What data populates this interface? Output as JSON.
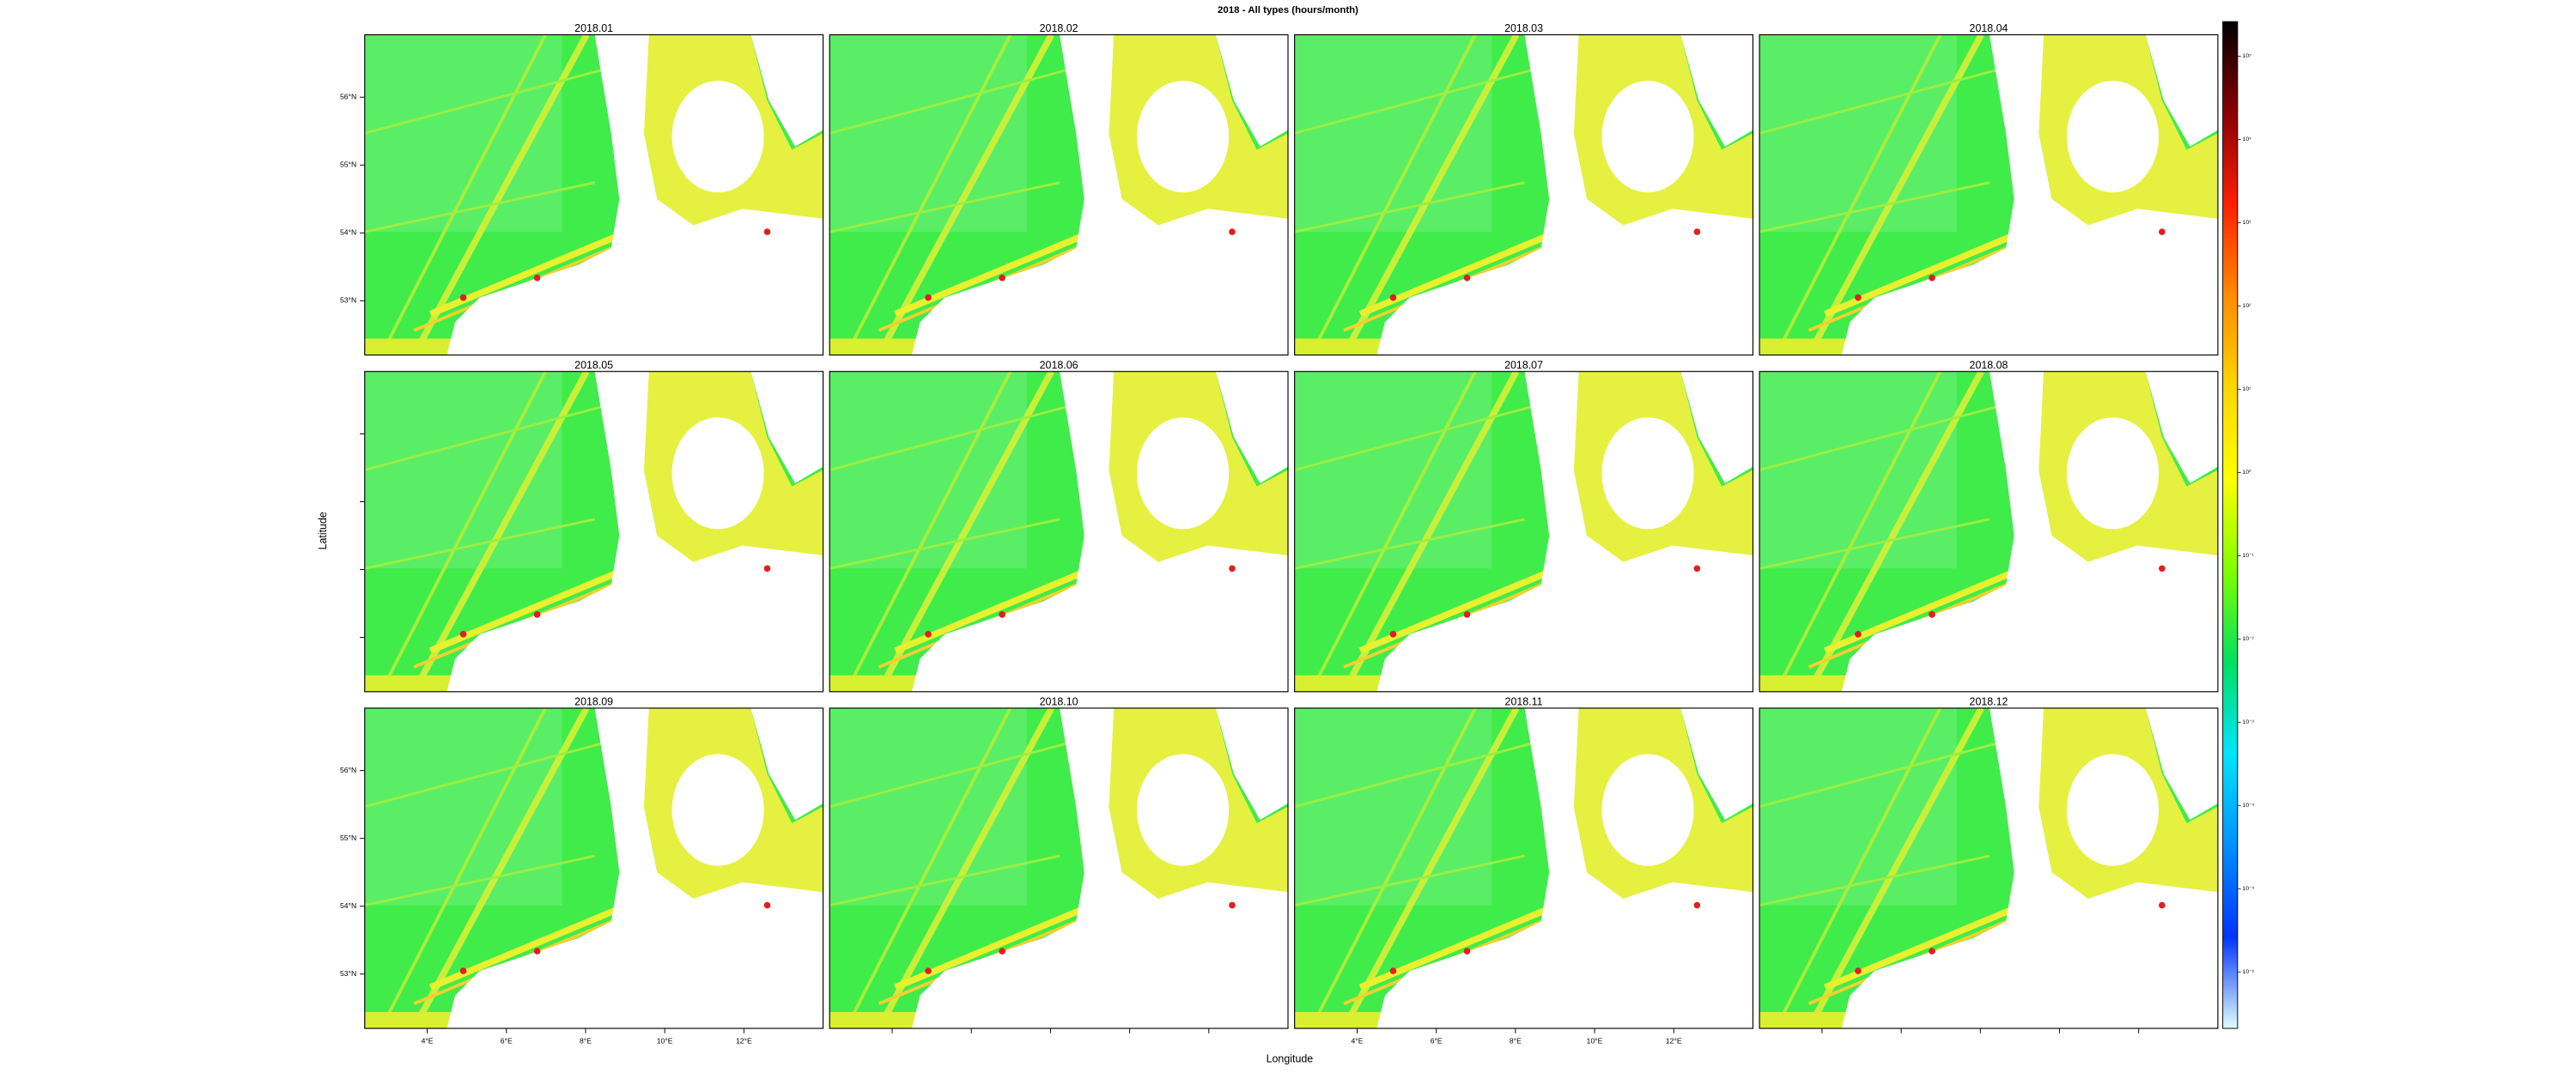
{
  "chart_data": {
    "type": "map-panels",
    "title": "2018 - All types (hours/month)",
    "xlabel": "Longitude",
    "ylabel": "Latitude",
    "panels": [
      "2018.01",
      "2018.02",
      "2018.03",
      "2018.04",
      "2018.05",
      "2018.06",
      "2018.07",
      "2018.08",
      "2018.09",
      "2018.10",
      "2018.11",
      "2018.12"
    ],
    "xlim": [
      2.42,
      14.0
    ],
    "ylim": [
      52.2,
      56.92
    ],
    "xticks": [
      {
        "value": 4,
        "label": "4°E"
      },
      {
        "value": 6,
        "label": "6°E"
      },
      {
        "value": 8,
        "label": "8°E"
      },
      {
        "value": 10,
        "label": "10°E"
      },
      {
        "value": 12,
        "label": "12°E"
      }
    ],
    "yticks": [
      {
        "value": 53,
        "label": "53°N"
      },
      {
        "value": 54,
        "label": "54°N"
      },
      {
        "value": 55,
        "label": "55°N"
      },
      {
        "value": 56,
        "label": "56°N"
      }
    ],
    "colorbar": {
      "scale": "log",
      "lim": [
        2.1e-07,
        260000
      ],
      "ticks": [
        {
          "value": 100000,
          "label": "10⁵"
        },
        {
          "value": 10000,
          "label": "10⁴"
        },
        {
          "value": 1000,
          "label": "10³"
        },
        {
          "value": 100,
          "label": "10²"
        },
        {
          "value": 10,
          "label": "10¹"
        },
        {
          "value": 1,
          "label": "10⁰"
        },
        {
          "value": 0.1,
          "label": "10⁻¹"
        },
        {
          "value": 0.01,
          "label": "10⁻²"
        },
        {
          "value": 0.001,
          "label": "10⁻³"
        },
        {
          "value": 0.0001,
          "label": "10⁻⁴"
        },
        {
          "value": 1e-05,
          "label": "10⁻⁵"
        },
        {
          "value": 1e-06,
          "label": "10⁻⁶"
        }
      ],
      "colors": [
        "#000000",
        "#8b0000",
        "#ff2000",
        "#ff8c00",
        "#ffd700",
        "#ffff00",
        "#7fff00",
        "#00e060",
        "#00e5ff",
        "#0091ff",
        "#0033ff",
        "#e0ffff"
      ]
    }
  }
}
